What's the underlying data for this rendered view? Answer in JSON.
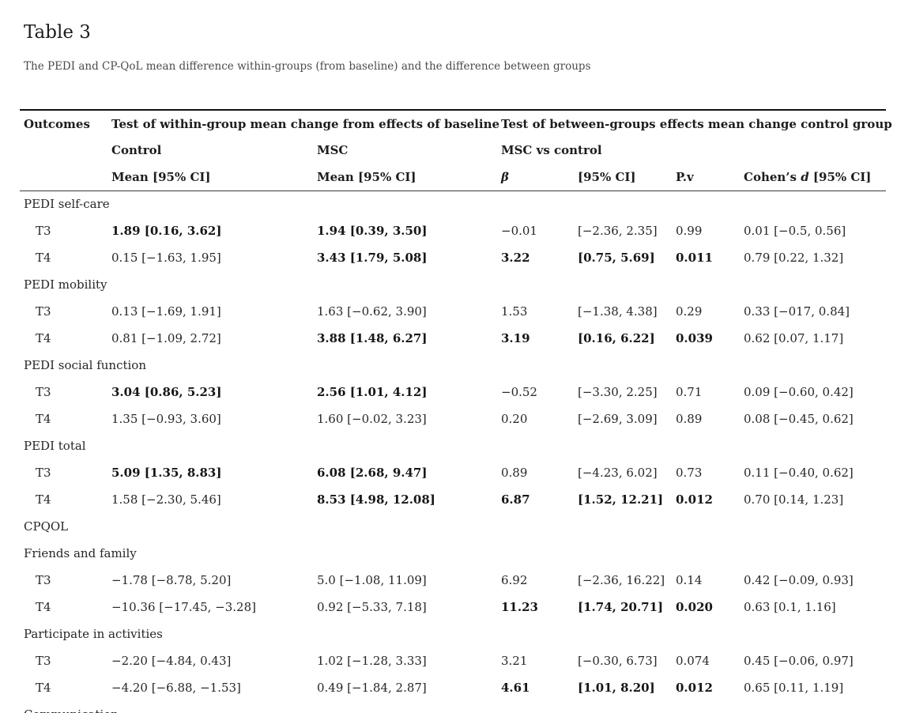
{
  "page": {
    "title": "Table 3",
    "caption": "The PEDI and CP-QoL mean difference within-groups (from baseline) and the difference between groups"
  },
  "table": {
    "header": {
      "outcomes": "Outcomes",
      "within_group": "Test of within-group mean change from effects of baseline",
      "between_groups": "Test of between-groups effects mean change control group",
      "control": "Control",
      "msc": "MSC",
      "msc_vs_control": "MSC vs control",
      "control_mean": "Mean [95% CI]",
      "msc_mean": "Mean [95% CI]",
      "beta": "β",
      "ci": "[95% CI]",
      "pv": "P.v",
      "cohens_prefix": "Cohen’s ",
      "cohens_d": "d",
      "cohens_suffix": " [95% CI]"
    },
    "rows": [
      {
        "type": "section",
        "label": "PEDI self-care"
      },
      {
        "type": "data",
        "label": "T3",
        "cells": [
          {
            "t": "1.89 [0.16, 3.62]",
            "b": true
          },
          {
            "t": "1.94 [0.39, 3.50]",
            "b": true
          },
          {
            "t": "−0.01",
            "b": false
          },
          {
            "t": "[−2.36, 2.35]",
            "b": false
          },
          {
            "t": "0.99",
            "b": false
          },
          {
            "t": "0.01 [−0.5, 0.56]",
            "b": false
          }
        ]
      },
      {
        "type": "data",
        "label": "T4",
        "cells": [
          {
            "t": "0.15 [−1.63, 1.95]",
            "b": false
          },
          {
            "t": "3.43 [1.79, 5.08]",
            "b": true
          },
          {
            "t": "3.22",
            "b": true
          },
          {
            "t": "[0.75, 5.69]",
            "b": true
          },
          {
            "t": "0.011",
            "b": true
          },
          {
            "t": "0.79 [0.22, 1.32]",
            "b": false
          }
        ]
      },
      {
        "type": "section",
        "label": "PEDI mobility"
      },
      {
        "type": "data",
        "label": "T3",
        "cells": [
          {
            "t": "0.13 [−1.69, 1.91]",
            "b": false
          },
          {
            "t": "1.63 [−0.62, 3.90]",
            "b": false
          },
          {
            "t": "1.53",
            "b": false
          },
          {
            "t": "[−1.38, 4.38]",
            "b": false
          },
          {
            "t": "0.29",
            "b": false
          },
          {
            "t": "0.33 [−017, 0.84]",
            "b": false
          }
        ]
      },
      {
        "type": "data",
        "label": "T4",
        "cells": [
          {
            "t": "0.81 [−1.09, 2.72]",
            "b": false
          },
          {
            "t": "3.88 [1.48, 6.27]",
            "b": true
          },
          {
            "t": "3.19",
            "b": true
          },
          {
            "t": "[0.16, 6.22]",
            "b": true
          },
          {
            "t": "0.039",
            "b": true
          },
          {
            "t": "0.62 [0.07, 1.17]",
            "b": false
          }
        ]
      },
      {
        "type": "section",
        "label": "PEDI social function"
      },
      {
        "type": "data",
        "label": "T3",
        "cells": [
          {
            "t": "3.04 [0.86, 5.23]",
            "b": true
          },
          {
            "t": "2.56 [1.01, 4.12]",
            "b": true
          },
          {
            "t": "−0.52",
            "b": false
          },
          {
            "t": "[−3.30, 2.25]",
            "b": false
          },
          {
            "t": "0.71",
            "b": false
          },
          {
            "t": "0.09 [−0.60, 0.42]",
            "b": false
          }
        ]
      },
      {
        "type": "data",
        "label": "T4",
        "cells": [
          {
            "t": "1.35 [−0.93, 3.60]",
            "b": false
          },
          {
            "t": "1.60 [−0.02, 3.23]",
            "b": false
          },
          {
            "t": "0.20",
            "b": false
          },
          {
            "t": "[−2.69, 3.09]",
            "b": false
          },
          {
            "t": "0.89",
            "b": false
          },
          {
            "t": "0.08 [−0.45, 0.62]",
            "b": false
          }
        ]
      },
      {
        "type": "section",
        "label": "PEDI total"
      },
      {
        "type": "data",
        "label": "T3",
        "cells": [
          {
            "t": "5.09 [1.35, 8.83]",
            "b": true
          },
          {
            "t": "6.08 [2.68, 9.47]",
            "b": true
          },
          {
            "t": "0.89",
            "b": false
          },
          {
            "t": "[−4.23, 6.02]",
            "b": false
          },
          {
            "t": "0.73",
            "b": false
          },
          {
            "t": "0.11 [−0.40, 0.62]",
            "b": false
          }
        ]
      },
      {
        "type": "data",
        "label": "T4",
        "cells": [
          {
            "t": "1.58 [−2.30, 5.46]",
            "b": false
          },
          {
            "t": "8.53 [4.98, 12.08]",
            "b": true
          },
          {
            "t": "6.87",
            "b": true
          },
          {
            "t": "[1.52, 12.21]",
            "b": true
          },
          {
            "t": "0.012",
            "b": true
          },
          {
            "t": "0.70 [0.14, 1.23]",
            "b": false
          }
        ]
      },
      {
        "type": "section",
        "label": "CPQOL"
      },
      {
        "type": "section",
        "label": "Friends and family"
      },
      {
        "type": "data",
        "label": "T3",
        "cells": [
          {
            "t": "−1.78 [−8.78, 5.20]",
            "b": false
          },
          {
            "t": "5.0 [−1.08, 11.09]",
            "b": false
          },
          {
            "t": "6.92",
            "b": false
          },
          {
            "t": "[−2.36, 16.22]",
            "b": false
          },
          {
            "t": "0.14",
            "b": false
          },
          {
            "t": "0.42 [−0.09, 0.93]",
            "b": false
          }
        ]
      },
      {
        "type": "data",
        "label": "T4",
        "cells": [
          {
            "t": "−10.36 [−17.45, −3.28]",
            "b": false
          },
          {
            "t": "0.92 [−5.33, 7.18]",
            "b": false
          },
          {
            "t": "11.23",
            "b": true
          },
          {
            "t": "[1.74, 20.71]",
            "b": true
          },
          {
            "t": "0.020",
            "b": true
          },
          {
            "t": "0.63 [0.1, 1.16]",
            "b": false
          }
        ]
      },
      {
        "type": "section",
        "label": "Participate in activities"
      },
      {
        "type": "data",
        "label": "T3",
        "cells": [
          {
            "t": "−2.20 [−4.84, 0.43]",
            "b": false
          },
          {
            "t": "1.02 [−1.28, 3.33]",
            "b": false
          },
          {
            "t": "3.21",
            "b": false
          },
          {
            "t": "[−0.30, 6.73]",
            "b": false
          },
          {
            "t": "0.074",
            "b": false
          },
          {
            "t": "0.45 [−0.06, 0.97]",
            "b": false
          }
        ]
      },
      {
        "type": "data",
        "label": "T4",
        "cells": [
          {
            "t": "−4.20 [−6.88, −1.53]",
            "b": false
          },
          {
            "t": "0.49 [−1.84, 2.87]",
            "b": false
          },
          {
            "t": "4.61",
            "b": true
          },
          {
            "t": "[1.01, 8.20]",
            "b": true
          },
          {
            "t": "0.012",
            "b": true
          },
          {
            "t": "0.65 [0.11, 1.19]",
            "b": false
          }
        ]
      },
      {
        "type": "section",
        "label": "Communication"
      }
    ]
  }
}
